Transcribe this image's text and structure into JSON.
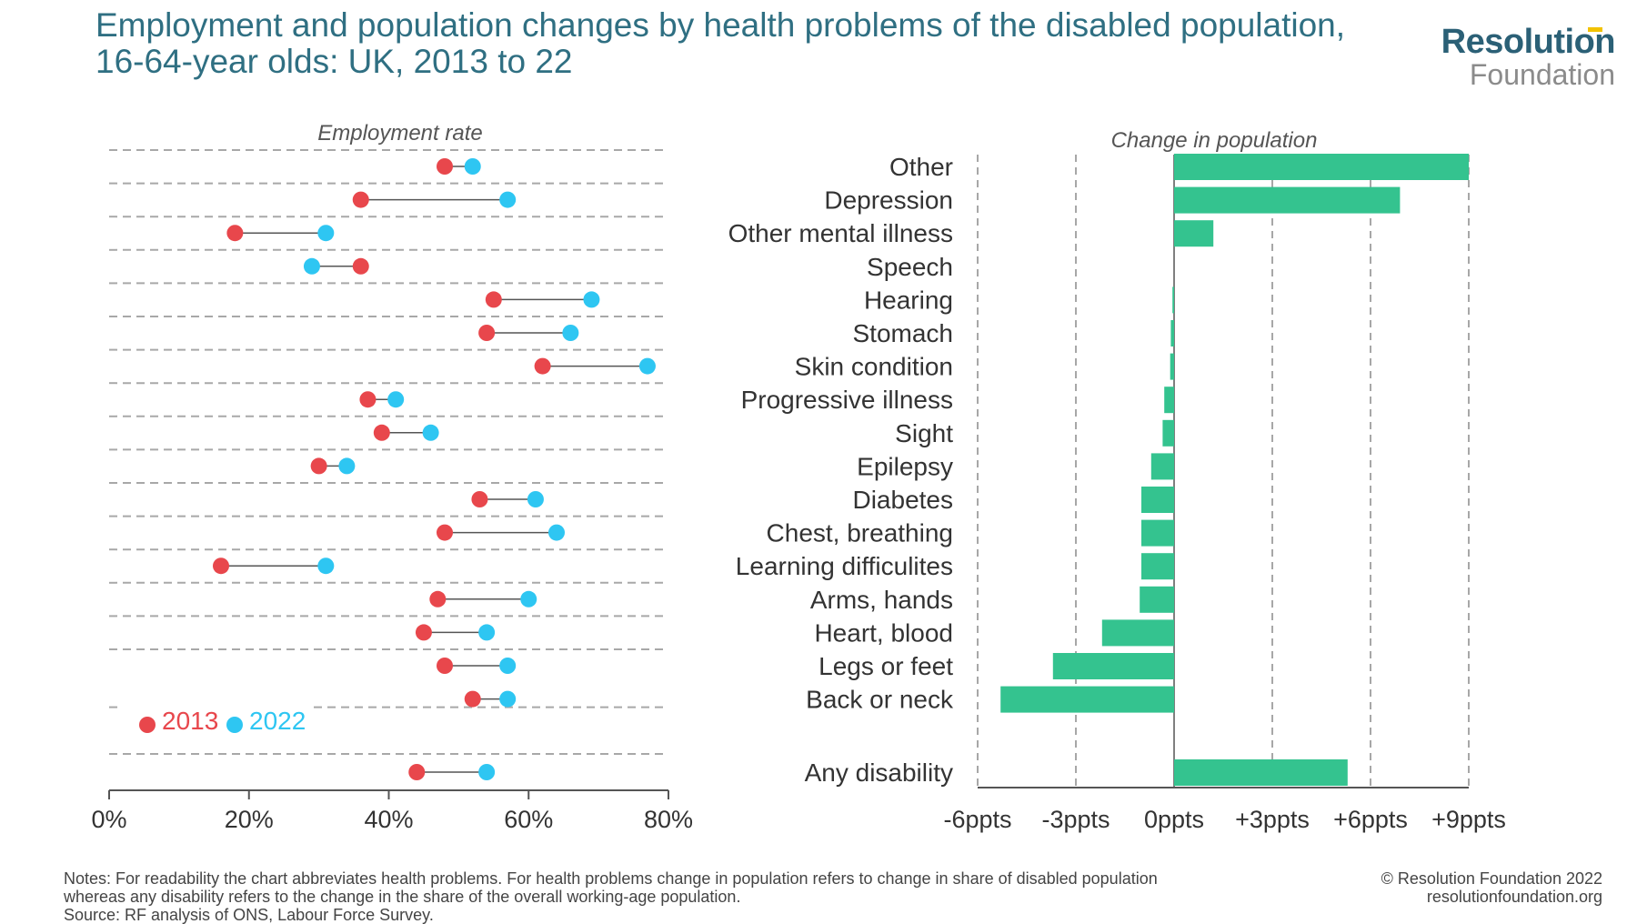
{
  "header": {
    "title_line1": "Employment and population changes by health problems of the disabled population,",
    "title_line2": "16-64-year olds: UK, 2013 to 22",
    "logo_top": "Resolution",
    "logo_bottom": "Foundation"
  },
  "chart_data": [
    {
      "type": "dumbbell",
      "title": "Employment rate",
      "x_ticks": [
        "0%",
        "20%",
        "40%",
        "60%",
        "80%"
      ],
      "xlim": [
        0,
        80
      ],
      "legend": [
        {
          "name": "2013",
          "color": "#e8474c"
        },
        {
          "name": "2022",
          "color": "#2ec6f2"
        }
      ],
      "categories": [
        "Other",
        "Depression",
        "Other mental illness",
        "Speech",
        "Hearing",
        "Stomach",
        "Skin condition",
        "Progressive illness",
        "Sight",
        "Epilepsy",
        "Diabetes",
        "Chest, breathing",
        "Learning difficulites",
        "Arms, hands",
        "Heart, blood",
        "Legs or feet",
        "Back or neck",
        "Any disability"
      ],
      "series": [
        {
          "name": "2013",
          "values": [
            48,
            36,
            18,
            36,
            55,
            54,
            62,
            37,
            39,
            30,
            53,
            48,
            16,
            47,
            45,
            48,
            52,
            44
          ]
        },
        {
          "name": "2022",
          "values": [
            52,
            57,
            31,
            29,
            69,
            66,
            77,
            41,
            46,
            34,
            61,
            64,
            31,
            60,
            54,
            57,
            57,
            54
          ]
        }
      ]
    },
    {
      "type": "bar",
      "orientation": "horizontal",
      "title": "Change in population",
      "x_ticks": [
        "-6ppts",
        "-3ppts",
        "0ppts",
        "+3ppts",
        "+6ppts",
        "+9ppts"
      ],
      "xlim": [
        -6,
        9
      ],
      "color": "#34c38f",
      "categories": [
        "Other",
        "Depression",
        "Other mental illness",
        "Speech",
        "Hearing",
        "Stomach",
        "Skin condition",
        "Progressive illness",
        "Sight",
        "Epilepsy",
        "Diabetes",
        "Chest, breathing",
        "Learning difficulites",
        "Arms, hands",
        "Heart, blood",
        "Legs or feet",
        "Back or neck",
        "Any disability"
      ],
      "values": [
        9.0,
        6.9,
        1.2,
        0.0,
        -0.05,
        -0.1,
        -0.12,
        -0.3,
        -0.35,
        -0.7,
        -1.0,
        -1.0,
        -1.0,
        -1.05,
        -2.2,
        -3.7,
        -5.3,
        5.3
      ]
    }
  ],
  "footer": {
    "notes_line1": "Notes: For readability the chart abbreviates health problems. For health problems change in population refers to change in share of disabled population",
    "notes_line2": "whereas any disability refers to the change in the share of the overall working-age population.",
    "source": "Source: RF analysis of ONS, Labour Force Survey.",
    "copyright": "© Resolution Foundation 2022",
    "website": "resolutionfoundation.org"
  }
}
